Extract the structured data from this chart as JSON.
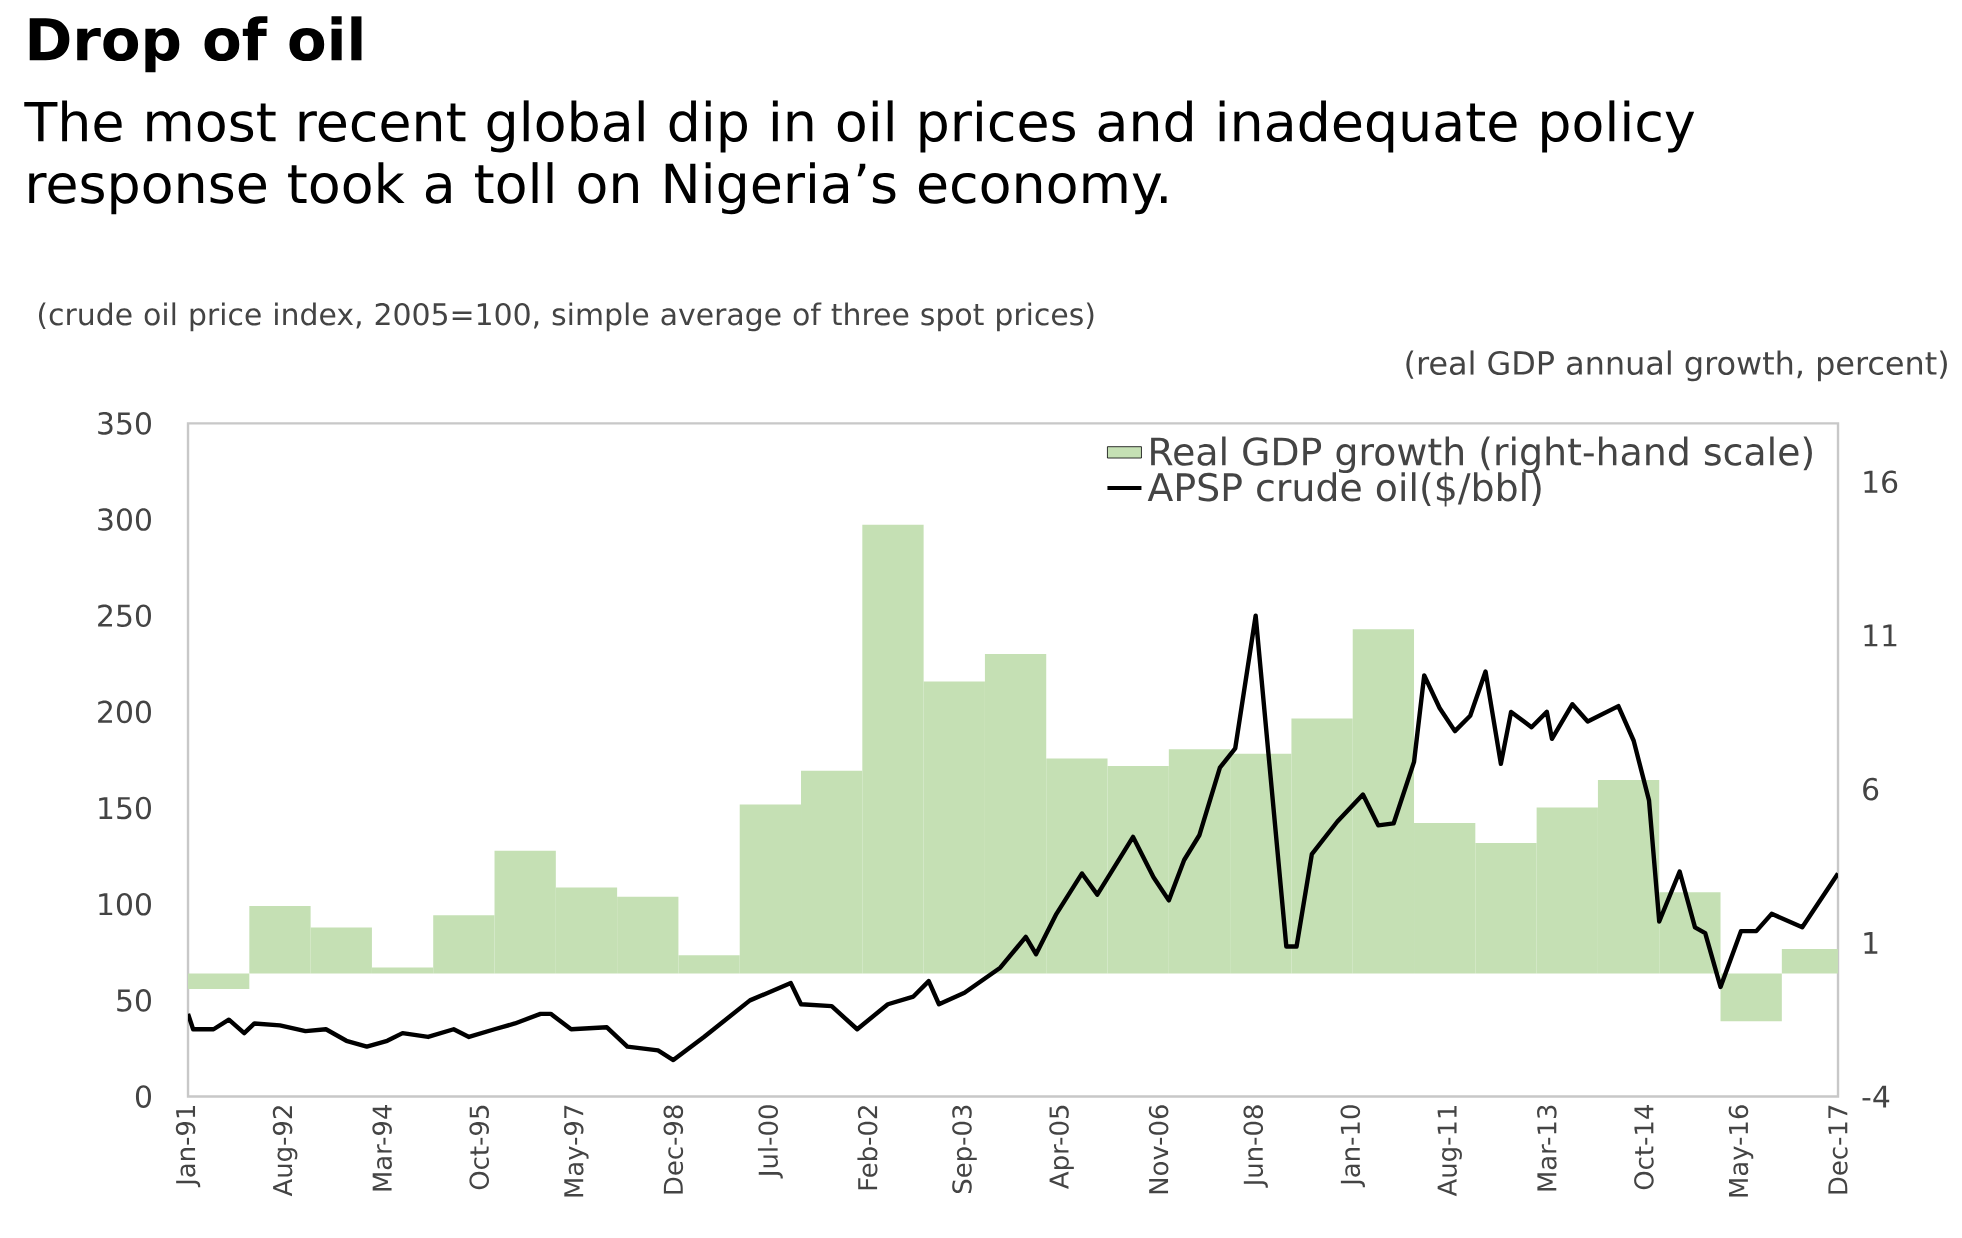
{
  "chart_data": {
    "type": "line",
    "title": "Drop of oil",
    "subtitle": "The most recent global dip in oil prices and inadequate policy response took a toll on Nigeria’s economy.",
    "ylabel": "(crude oil price index, 2005=100, simple average of three spot prices)",
    "y2label": "(real GDP annual growth, percent)",
    "xlim": [
      "1991-01",
      "2017-12"
    ],
    "xticks": [
      {
        "value": "1991-01",
        "label": "Jan-91"
      },
      {
        "value": "1992-08",
        "label": "Aug-92"
      },
      {
        "value": "1994-03",
        "label": "Mar-94"
      },
      {
        "value": "1995-10",
        "label": "Oct-95"
      },
      {
        "value": "1997-05",
        "label": "May-97"
      },
      {
        "value": "1998-12",
        "label": "Dec-98"
      },
      {
        "value": "2000-07",
        "label": "Jul-00"
      },
      {
        "value": "2002-02",
        "label": "Feb-02"
      },
      {
        "value": "2003-09",
        "label": "Sep-03"
      },
      {
        "value": "2005-04",
        "label": "Apr-05"
      },
      {
        "value": "2006-11",
        "label": "Nov-06"
      },
      {
        "value": "2008-06",
        "label": "Jun-08"
      },
      {
        "value": "2010-01",
        "label": "Jan-10"
      },
      {
        "value": "2011-08",
        "label": "Aug-11"
      },
      {
        "value": "2013-03",
        "label": "Mar-13"
      },
      {
        "value": "2014-10",
        "label": "Oct-14"
      },
      {
        "value": "2016-05",
        "label": "May-16"
      },
      {
        "value": "2017-12",
        "label": "Dec-17"
      }
    ],
    "ylim": [
      0,
      350
    ],
    "yticks": [
      0,
      50,
      100,
      150,
      200,
      250,
      300,
      350
    ],
    "y2lim": [
      -4,
      17.9
    ],
    "y2ticks": [
      -4,
      1,
      6,
      11,
      16
    ],
    "legend": "top right",
    "grid": false,
    "series": [
      {
        "name": "Real GDP growth (right-hand scale)",
        "type": "bar",
        "axis": "y2",
        "color": "#c5e0b4",
        "x": [
          "1991-07",
          "1992-07",
          "1993-07",
          "1994-07",
          "1995-07",
          "1996-07",
          "1997-07",
          "1998-07",
          "1999-07",
          "2000-07",
          "2001-07",
          "2002-07",
          "2003-07",
          "2004-07",
          "2005-07",
          "2006-07",
          "2007-07",
          "2008-07",
          "2009-07",
          "2010-07",
          "2011-07",
          "2012-07",
          "2013-07",
          "2014-07",
          "2015-07",
          "2016-07",
          "2017-07"
        ],
        "values": [
          -0.5,
          2.2,
          1.5,
          0.2,
          1.9,
          4.0,
          2.8,
          2.5,
          0.6,
          5.5,
          6.6,
          14.6,
          9.5,
          10.4,
          7.0,
          6.75,
          7.3,
          7.15,
          8.3,
          11.2,
          4.9,
          4.25,
          5.4,
          6.3,
          2.65,
          -1.55,
          0.8
        ]
      },
      {
        "name": "APSP crude oil($/bbl)",
        "color": "#000000",
        "line_style": "solid",
        "x": [
          "1991-01",
          "1991-02",
          "1991-06",
          "1991-09",
          "1991-12",
          "1992-02",
          "1992-07",
          "1992-12",
          "1993-04",
          "1993-08",
          "1993-12",
          "1994-04",
          "1994-07",
          "1994-12",
          "1995-05",
          "1995-08",
          "1996-01",
          "1996-05",
          "1996-10",
          "1996-12",
          "1997-04",
          "1997-11",
          "1998-03",
          "1998-09",
          "1998-12",
          "1999-06",
          "2000-03",
          "2000-11",
          "2001-01",
          "2001-07",
          "2001-12",
          "2002-06",
          "2002-11",
          "2003-02",
          "2003-04",
          "2003-09",
          "2004-04",
          "2004-09",
          "2004-11",
          "2005-03",
          "2005-08",
          "2005-11",
          "2006-06",
          "2006-10",
          "2007-01",
          "2007-04",
          "2007-07",
          "2007-11",
          "2008-02",
          "2008-06",
          "2008-12",
          "2009-02",
          "2009-05",
          "2009-10",
          "2010-03",
          "2010-06",
          "2010-09",
          "2011-01",
          "2011-03",
          "2011-06",
          "2011-09",
          "2011-12",
          "2012-03",
          "2012-06",
          "2012-08",
          "2012-12",
          "2013-03",
          "2013-04",
          "2013-08",
          "2013-11",
          "2014-05",
          "2014-08",
          "2014-11",
          "2015-01",
          "2015-05",
          "2015-08",
          "2015-10",
          "2016-01",
          "2016-05",
          "2016-08",
          "2016-11",
          "2017-05",
          "2017-12"
        ],
        "values": [
          43,
          35,
          35,
          40,
          33,
          38,
          37,
          34,
          35,
          29,
          26,
          29,
          33,
          31,
          35,
          31,
          35,
          38,
          43,
          43,
          35,
          36,
          26,
          24,
          19,
          31,
          50,
          59,
          48,
          47,
          35,
          48,
          52,
          60,
          48,
          54,
          67,
          83,
          74,
          95,
          116,
          105,
          135,
          114,
          102,
          123,
          136,
          171,
          181,
          250,
          78,
          78,
          126,
          143,
          157,
          141,
          142,
          174,
          219,
          202,
          190,
          198,
          221,
          173,
          200,
          192,
          200,
          186,
          204,
          195,
          203,
          185,
          154,
          91,
          117,
          88,
          85,
          57,
          86,
          86,
          95,
          88,
          116
        ]
      }
    ]
  }
}
